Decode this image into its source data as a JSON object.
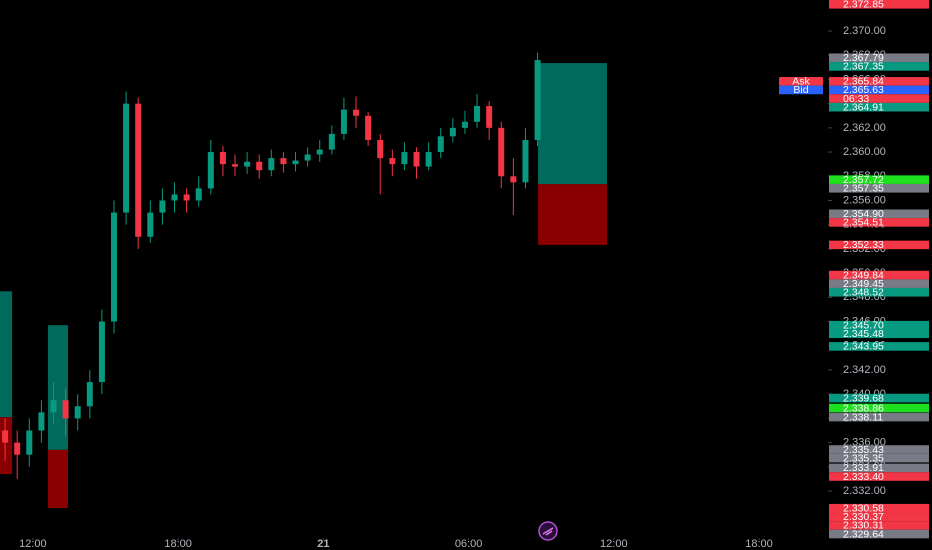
{
  "chart_data": {
    "type": "candlestick",
    "x": [
      10.85,
      11.35,
      11.85,
      12.35,
      12.85,
      13.35,
      13.85,
      14.35,
      14.85,
      15.35,
      15.85,
      16.35,
      16.85,
      17.35,
      17.85,
      18.35,
      18.85,
      19.35,
      19.85,
      20.35,
      20.85,
      21.35,
      21.85,
      22.35,
      22.85,
      23.35,
      23.85,
      24.35,
      24.85,
      25.35,
      25.85,
      26.35,
      26.85,
      27.35,
      27.85,
      28.35,
      28.85,
      29.35,
      29.85,
      30.35,
      30.85,
      31.35,
      31.85,
      32.35,
      32.85
    ],
    "open": [
      2337,
      2336,
      2335,
      2337,
      2338.5,
      2339.5,
      2338,
      2339,
      2341,
      2346,
      2355,
      2364,
      2353,
      2355,
      2356,
      2356.5,
      2356,
      2357,
      2360,
      2359,
      2358.8,
      2359.2,
      2358.5,
      2359.5,
      2359,
      2359.3,
      2359.8,
      2360.2,
      2361.5,
      2363.5,
      2363,
      2361,
      2359.5,
      2359,
      2360,
      2358.8,
      2360,
      2361.3,
      2362,
      2362.5,
      2363.8,
      2362,
      2358,
      2357.5,
      2361
    ],
    "high": [
      2338,
      2337,
      2338,
      2339.5,
      2341,
      2340.5,
      2340,
      2342,
      2347,
      2356,
      2365,
      2364.5,
      2356,
      2357,
      2357.5,
      2357,
      2358,
      2361,
      2360.5,
      2359.8,
      2360,
      2359.8,
      2360.2,
      2360,
      2360,
      2360.4,
      2361,
      2362.2,
      2364.5,
      2364.6,
      2363.3,
      2361.5,
      2360.2,
      2360.8,
      2360.4,
      2360.8,
      2362,
      2362.8,
      2363.4,
      2364.8,
      2364.2,
      2362.5,
      2359.5,
      2362,
      2368.2
    ],
    "low": [
      2334.5,
      2333,
      2334,
      2336,
      2337.5,
      2336.5,
      2337,
      2338,
      2340,
      2345,
      2354,
      2352,
      2352.5,
      2354,
      2355,
      2355,
      2355.5,
      2356.5,
      2358,
      2358,
      2358.2,
      2357.8,
      2358,
      2358.3,
      2358.4,
      2358.8,
      2359.2,
      2359.8,
      2361,
      2362,
      2360.5,
      2356.5,
      2358,
      2358.5,
      2357.8,
      2358.5,
      2359.5,
      2360.8,
      2361.5,
      2362,
      2361,
      2357,
      2354.8,
      2357,
      2360.5
    ],
    "close": [
      2336,
      2335,
      2337,
      2338.5,
      2339.5,
      2338,
      2339,
      2341,
      2346,
      2355,
      2364,
      2353,
      2355,
      2356,
      2356.5,
      2356,
      2357,
      2360,
      2359,
      2358.8,
      2359.2,
      2358.5,
      2359.5,
      2359,
      2359.3,
      2359.8,
      2360.2,
      2361.5,
      2363.5,
      2363,
      2361,
      2359.5,
      2359,
      2360,
      2358.8,
      2360,
      2361.3,
      2362,
      2362.5,
      2363.8,
      2362,
      2358,
      2357.5,
      2361,
      2367.6
    ],
    "up_color": "#089981",
    "down_color": "#f23645",
    "xlim": [
      10.64,
      44.85
    ],
    "xticks": [
      {
        "value": 12,
        "label": "12:00"
      },
      {
        "value": 18,
        "label": "18:00"
      },
      {
        "value": 24,
        "label": "21"
      },
      {
        "value": 30,
        "label": "06:00"
      },
      {
        "value": 36,
        "label": "12:00"
      },
      {
        "value": 42,
        "label": "18:00"
      }
    ],
    "ylim": [
      2327.13,
      2372.56
    ],
    "yticks": [
      {
        "value": 2332,
        "label": "2.332.00"
      },
      {
        "value": 2334,
        "label": "2.334.00"
      },
      {
        "value": 2336,
        "label": "2.336.00"
      },
      {
        "value": 2338,
        "label": "2.338.00"
      },
      {
        "value": 2340,
        "label": "2.340.00"
      },
      {
        "value": 2342,
        "label": "2.342.00"
      },
      {
        "value": 2344,
        "label": "2.344.00"
      },
      {
        "value": 2346,
        "label": "2.346.00"
      },
      {
        "value": 2348,
        "label": "2.348.00"
      },
      {
        "value": 2350,
        "label": "2.350.00"
      },
      {
        "value": 2352,
        "label": "2.352.00"
      },
      {
        "value": 2354,
        "label": "2.354.00"
      },
      {
        "value": 2356,
        "label": "2.356.00"
      },
      {
        "value": 2358,
        "label": "2.358.00"
      },
      {
        "value": 2360,
        "label": "2.360.00"
      },
      {
        "value": 2362,
        "label": "2.362.00"
      },
      {
        "value": 2364,
        "label": "2.364.00"
      },
      {
        "value": 2366,
        "label": "2.366.00"
      },
      {
        "value": 2368,
        "label": "2.368.00"
      },
      {
        "value": 2370,
        "label": "2.370.00"
      }
    ],
    "positions": [
      {
        "x_start": 10.64,
        "x_end": 11.14,
        "target": 2348.5,
        "entry": 2338.1,
        "stop": 2333.4
      },
      {
        "x_start": 12.62,
        "x_end": 13.45,
        "target": 2345.7,
        "entry": 2335.4,
        "stop": 2330.6
      },
      {
        "x_start": 32.87,
        "x_end": 35.72,
        "target": 2367.35,
        "entry": 2357.35,
        "stop": 2352.33
      }
    ],
    "target_color": "#006b5c",
    "stop_color": "#8a0000",
    "price_labels": [
      {
        "value": 2372.85,
        "label": "2.372.85",
        "color": "#f23645"
      },
      {
        "value": 2367.79,
        "label": "2.367.79",
        "color": "#787b86"
      },
      {
        "value": 2367.35,
        "label": "2.367.35",
        "color": "#089981"
      },
      {
        "value": 2365.84,
        "label": "2.365.84",
        "color": "#f23645",
        "tag": "Ask"
      },
      {
        "value": 2365.63,
        "label": "2.365.63",
        "color": "#2962ff",
        "tag": "Bid"
      },
      {
        "label": "06:33",
        "color": "#f23645"
      },
      {
        "value": 2364.91,
        "label": "2.364.91",
        "color": "#089981"
      },
      {
        "value": 2357.72,
        "label": "2.357.72",
        "color": "#1fe01f"
      },
      {
        "value": 2357.35,
        "label": "2.357.35",
        "color": "#787b86"
      },
      {
        "value": 2354.9,
        "label": "2.354.90",
        "color": "#787b86"
      },
      {
        "value": 2354.51,
        "label": "2.354.51",
        "color": "#f23645"
      },
      {
        "value": 2352.33,
        "label": "2.352.33",
        "color": "#f23645"
      },
      {
        "value": 2349.84,
        "label": "2.349.84",
        "color": "#f23645"
      },
      {
        "value": 2349.45,
        "label": "2.349.45",
        "color": "#787b86"
      },
      {
        "value": 2348.52,
        "label": "2.348.52",
        "color": "#089981"
      },
      {
        "value": 2345.7,
        "label": "2.345.70",
        "color": "#089981"
      },
      {
        "value": 2345.48,
        "label": "2.345.48",
        "color": "#089981"
      },
      {
        "value": 2343.95,
        "label": "2.343.95",
        "color": "#089981"
      },
      {
        "value": 2339.68,
        "label": "2.339.68",
        "color": "#089981"
      },
      {
        "value": 2338.86,
        "label": "2.338.86",
        "color": "#1fe01f"
      },
      {
        "value": 2338.11,
        "label": "2.338.11",
        "color": "#787b86"
      },
      {
        "value": 2335.43,
        "label": "2.335.43",
        "color": "#787b86"
      },
      {
        "value": 2335.35,
        "label": "2.335.35",
        "color": "#787b86"
      },
      {
        "value": 2333.91,
        "label": "2.333.91",
        "color": "#787b86"
      },
      {
        "value": 2333.4,
        "label": "2.333.40",
        "color": "#f23645"
      },
      {
        "value": 2330.58,
        "label": "2.330.58",
        "color": "#f23645"
      },
      {
        "value": 2330.37,
        "label": "2.330.37",
        "color": "#f23645"
      },
      {
        "value": 2330.31,
        "label": "2.330.31",
        "color": "#f23645"
      },
      {
        "value": 2329.64,
        "label": "2.329.64",
        "color": "#787b86"
      }
    ]
  }
}
